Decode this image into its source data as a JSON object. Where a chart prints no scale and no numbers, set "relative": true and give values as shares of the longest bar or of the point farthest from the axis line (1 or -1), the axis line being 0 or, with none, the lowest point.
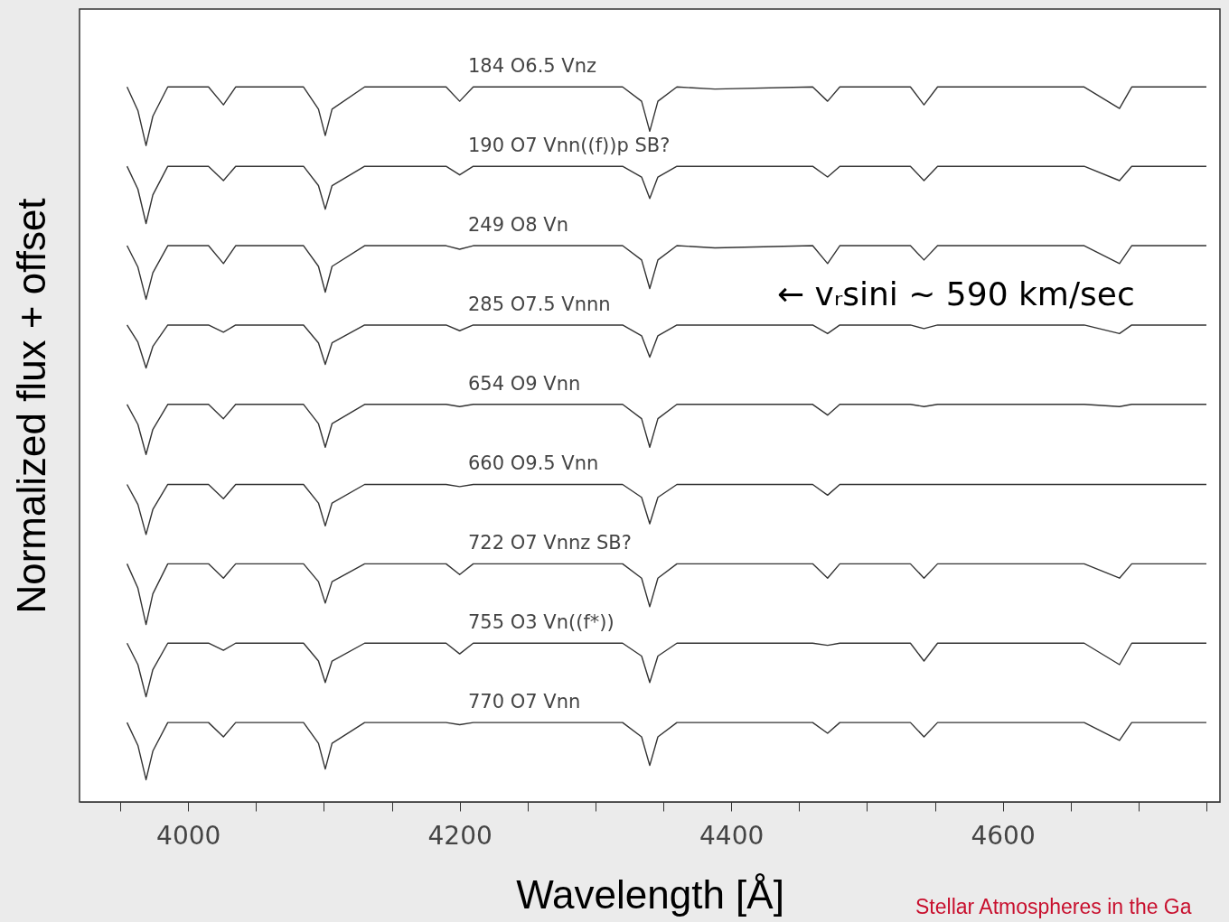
{
  "chart_data": {
    "type": "line",
    "relative": true,
    "xlabel": "Wavelength [Å]",
    "ylabel": "Normalized flux + offset",
    "xlim": [
      3920,
      4760
    ],
    "xticks": [
      {
        "value": 3950,
        "label": null
      },
      4000,
      {
        "value": 4050,
        "label": null
      },
      {
        "value": 4100,
        "label": null
      },
      {
        "value": 4150,
        "label": null
      },
      4200,
      {
        "value": 4250,
        "label": null
      },
      {
        "value": 4300,
        "label": null
      },
      {
        "value": 4350,
        "label": null
      },
      4400,
      {
        "value": 4450,
        "label": null
      },
      {
        "value": 4500,
        "label": null
      },
      {
        "value": 4550,
        "label": null
      },
      4600,
      {
        "value": 4650,
        "label": null
      },
      {
        "value": 4700,
        "label": null
      },
      {
        "value": 4750,
        "label": null
      }
    ],
    "x": [
      3955,
      3963,
      3969,
      3974,
      3985,
      4015,
      4026,
      4035,
      4085,
      4096,
      4101,
      4106,
      4130,
      4190,
      4200,
      4210,
      4320,
      4334,
      4340,
      4346,
      4360,
      4388,
      4460,
      4471,
      4480,
      4532,
      4542,
      4552,
      4660,
      4686,
      4695,
      4750
    ],
    "series": [
      {
        "name": "184 O6.5 Vnz",
        "color": "#333333",
        "values": [
          1.0,
          0.967,
          0.918,
          0.959,
          1.0,
          1.0,
          0.975,
          1.0,
          1.0,
          0.969,
          0.932,
          0.969,
          1.0,
          1.0,
          0.98,
          1.0,
          1.0,
          0.98,
          0.938,
          0.98,
          1.0,
          0.997,
          1.0,
          0.98,
          1.0,
          1.0,
          0.975,
          1.0,
          1.0,
          0.97,
          1.0,
          1.0
        ]
      },
      {
        "name": "190 O7 Vnn((f))p SB?",
        "color": "#333333",
        "values": [
          0.889,
          0.857,
          0.809,
          0.849,
          0.889,
          0.889,
          0.869,
          0.889,
          0.889,
          0.862,
          0.829,
          0.862,
          0.889,
          0.889,
          0.877,
          0.889,
          0.889,
          0.874,
          0.844,
          0.874,
          0.889,
          0.889,
          0.889,
          0.874,
          0.889,
          0.889,
          0.869,
          0.889,
          0.889,
          0.869,
          0.889,
          0.889
        ]
      },
      {
        "name": "249 O8 Vn",
        "color": "#333333",
        "values": [
          0.778,
          0.748,
          0.703,
          0.74,
          0.778,
          0.778,
          0.753,
          0.778,
          0.778,
          0.749,
          0.713,
          0.749,
          0.778,
          0.778,
          0.773,
          0.778,
          0.778,
          0.758,
          0.718,
          0.758,
          0.778,
          0.775,
          0.778,
          0.753,
          0.778,
          0.778,
          0.758,
          0.778,
          0.778,
          0.753,
          0.778,
          0.778
        ]
      },
      {
        "name": "285 O7.5 Vnnn",
        "color": "#333333",
        "values": [
          0.667,
          0.643,
          0.607,
          0.637,
          0.667,
          0.667,
          0.657,
          0.667,
          0.667,
          0.642,
          0.612,
          0.642,
          0.667,
          0.667,
          0.659,
          0.667,
          0.667,
          0.652,
          0.622,
          0.652,
          0.667,
          0.667,
          0.667,
          0.655,
          0.667,
          0.667,
          0.662,
          0.667,
          0.667,
          0.655,
          0.667,
          0.667
        ]
      },
      {
        "name": "654 O9 Vnn",
        "color": "#333333",
        "values": [
          0.556,
          0.528,
          0.486,
          0.521,
          0.556,
          0.556,
          0.536,
          0.556,
          0.556,
          0.529,
          0.496,
          0.529,
          0.556,
          0.556,
          0.553,
          0.556,
          0.556,
          0.536,
          0.496,
          0.536,
          0.556,
          0.556,
          0.556,
          0.541,
          0.556,
          0.556,
          0.553,
          0.556,
          0.556,
          0.553,
          0.556,
          0.556
        ]
      },
      {
        "name": "660 O9.5 Vnn",
        "color": "#333333",
        "values": [
          0.444,
          0.416,
          0.374,
          0.409,
          0.444,
          0.444,
          0.424,
          0.444,
          0.444,
          0.418,
          0.386,
          0.418,
          0.444,
          0.444,
          0.441,
          0.444,
          0.444,
          0.426,
          0.389,
          0.426,
          0.444,
          0.444,
          0.444,
          0.429,
          0.444,
          0.444,
          0.444,
          0.444,
          0.444,
          0.444,
          0.444,
          0.444
        ]
      },
      {
        "name": "722 O7 Vnnz SB?",
        "color": "#333333",
        "values": [
          0.333,
          0.299,
          0.248,
          0.291,
          0.333,
          0.333,
          0.313,
          0.333,
          0.333,
          0.308,
          0.278,
          0.308,
          0.333,
          0.333,
          0.318,
          0.333,
          0.333,
          0.313,
          0.273,
          0.313,
          0.333,
          0.333,
          0.333,
          0.313,
          0.333,
          0.333,
          0.313,
          0.333,
          0.333,
          0.313,
          0.333,
          0.333
        ]
      },
      {
        "name": "755 O3 Vn((f*))",
        "color": "#333333",
        "values": [
          0.222,
          0.192,
          0.147,
          0.185,
          0.222,
          0.222,
          0.212,
          0.222,
          0.222,
          0.197,
          0.167,
          0.197,
          0.222,
          0.222,
          0.207,
          0.222,
          0.222,
          0.204,
          0.167,
          0.204,
          0.222,
          0.222,
          0.222,
          0.219,
          0.222,
          0.222,
          0.197,
          0.222,
          0.222,
          0.192,
          0.222,
          0.222
        ]
      },
      {
        "name": "770 O7 Vnn",
        "color": "#333333",
        "values": [
          0.111,
          0.079,
          0.031,
          0.071,
          0.111,
          0.111,
          0.091,
          0.111,
          0.111,
          0.082,
          0.046,
          0.082,
          0.111,
          0.111,
          0.108,
          0.111,
          0.111,
          0.091,
          0.051,
          0.091,
          0.111,
          0.111,
          0.111,
          0.096,
          0.111,
          0.111,
          0.091,
          0.111,
          0.111,
          0.086,
          0.111,
          0.111
        ]
      }
    ],
    "annotations": [
      "← vᵣsini ~ 590 km/sec",
      "Stellar Atmospheres in the Ga"
    ]
  }
}
